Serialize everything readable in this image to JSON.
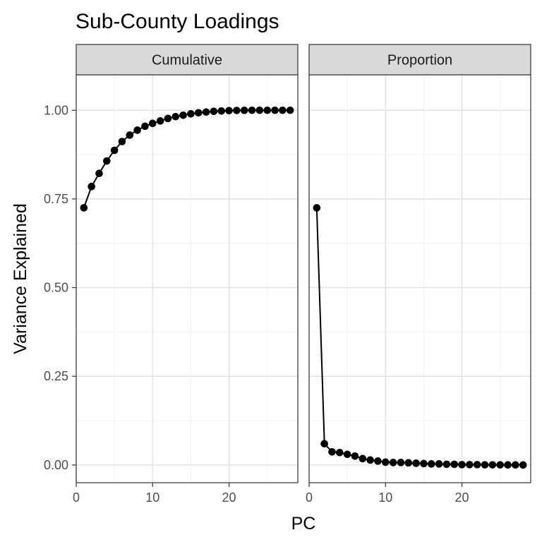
{
  "chart_data": {
    "type": "line",
    "title": "Sub-County Loadings",
    "xlabel": "PC",
    "ylabel": "Variance Explained",
    "xlim": [
      0,
      29
    ],
    "ylim": [
      -0.05,
      1.1
    ],
    "x_ticks": [
      0,
      10,
      20
    ],
    "y_ticks": [
      0.0,
      0.25,
      0.5,
      0.75,
      1.0
    ],
    "y_tick_labels": [
      "0.00",
      "0.25",
      "0.50",
      "0.75",
      "1.00"
    ],
    "x_tick_labels": [
      "0",
      "10",
      "20"
    ],
    "grid": true,
    "facets": [
      {
        "label": "Cumulative",
        "x": [
          1,
          2,
          3,
          4,
          5,
          6,
          7,
          8,
          9,
          10,
          11,
          12,
          13,
          14,
          15,
          16,
          17,
          18,
          19,
          20,
          21,
          22,
          23,
          24,
          25,
          26,
          27,
          28
        ],
        "y": [
          0.725,
          0.785,
          0.822,
          0.857,
          0.887,
          0.912,
          0.93,
          0.944,
          0.955,
          0.963,
          0.97,
          0.977,
          0.982,
          0.986,
          0.99,
          0.993,
          0.995,
          0.997,
          0.998,
          0.999,
          0.9995,
          0.9998,
          1.0,
          1.0,
          1.0,
          1.0,
          1.0,
          1.0
        ]
      },
      {
        "label": "Proportion",
        "x": [
          1,
          2,
          3,
          4,
          5,
          6,
          7,
          8,
          9,
          10,
          11,
          12,
          13,
          14,
          15,
          16,
          17,
          18,
          19,
          20,
          21,
          22,
          23,
          24,
          25,
          26,
          27,
          28
        ],
        "y": [
          0.725,
          0.06,
          0.037,
          0.035,
          0.03,
          0.025,
          0.018,
          0.014,
          0.011,
          0.008,
          0.007,
          0.007,
          0.006,
          0.005,
          0.004,
          0.003,
          0.003,
          0.002,
          0.002,
          0.001,
          0.001,
          0.001,
          0.0005,
          0.0005,
          0.0004,
          0.0003,
          0.0002,
          0.0001
        ]
      }
    ]
  }
}
